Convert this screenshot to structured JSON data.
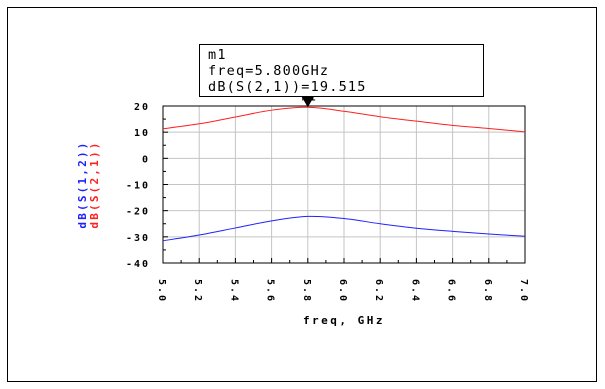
{
  "chart_data": {
    "type": "line",
    "x": [
      5.0,
      5.2,
      5.4,
      5.6,
      5.8,
      6.0,
      6.2,
      6.4,
      6.6,
      6.8,
      7.0
    ],
    "series": [
      {
        "name": "dB(S(1,2))",
        "color": "#2020ff",
        "values": [
          -31.5,
          -29.3,
          -26.6,
          -23.9,
          -22.2,
          -23.0,
          -25.0,
          -26.7,
          -27.9,
          -28.9,
          -29.8
        ]
      },
      {
        "name": "dB(S(2,1))",
        "color": "#ff2020",
        "values": [
          11.3,
          13.2,
          15.8,
          18.4,
          19.5,
          18.0,
          15.9,
          14.2,
          12.6,
          11.4,
          10.1
        ]
      }
    ],
    "xlabel": "freq, GHz",
    "ylabel": [
      "dB(S(1,2))",
      "dB(S(2,1))"
    ],
    "xlim": [
      5.0,
      7.0
    ],
    "ylim": [
      -40,
      20
    ],
    "xticks": [
      "5.0",
      "5.2",
      "5.4",
      "5.6",
      "5.8",
      "6.0",
      "6.2",
      "6.4",
      "6.6",
      "6.8",
      "7.0"
    ],
    "yticks": [
      "20",
      "10",
      "0",
      "-10",
      "-20",
      "-30",
      "-40"
    ],
    "grid": true,
    "marker": {
      "name": "m1",
      "x": 5.8,
      "y": 19.515,
      "label": "m1",
      "lines": [
        "m1",
        "freq=5.800GHz",
        "dB(S(2,1))=19.515"
      ]
    }
  }
}
